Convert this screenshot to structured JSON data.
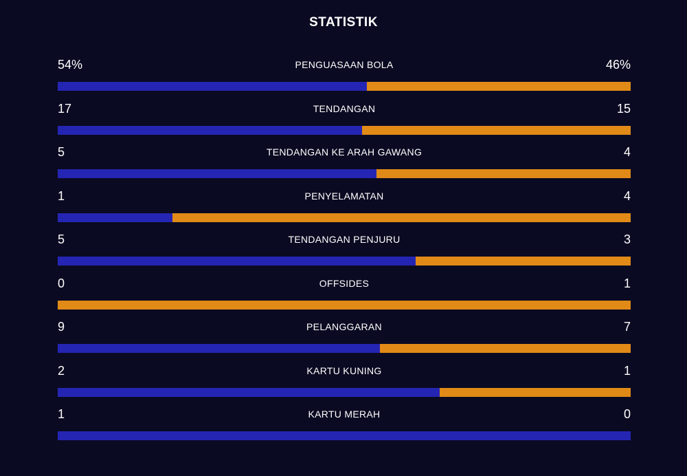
{
  "title": "STATISTIK",
  "colors": {
    "background": "#0a0a22",
    "home_bar": "#2525b3",
    "away_bar": "#e18a17",
    "text": "#ffffff"
  },
  "stats": [
    {
      "label": "PENGUASAAN BOLA",
      "home": "54%",
      "away": "46%",
      "home_share": 0.54
    },
    {
      "label": "TENDANGAN",
      "home": "17",
      "away": "15",
      "home_share": 0.531
    },
    {
      "label": "TENDANGAN KE ARAH GAWANG",
      "home": "5",
      "away": "4",
      "home_share": 0.556
    },
    {
      "label": "PENYELAMATAN",
      "home": "1",
      "away": "4",
      "home_share": 0.2
    },
    {
      "label": "TENDANGAN PENJURU",
      "home": "5",
      "away": "3",
      "home_share": 0.625
    },
    {
      "label": "OFFSIDES",
      "home": "0",
      "away": "1",
      "home_share": 0.0
    },
    {
      "label": "PELANGGARAN",
      "home": "9",
      "away": "7",
      "home_share": 0.5625
    },
    {
      "label": "KARTU KUNING",
      "home": "2",
      "away": "1",
      "home_share": 0.667
    },
    {
      "label": "KARTU MERAH",
      "home": "1",
      "away": "0",
      "home_share": 1.0
    }
  ]
}
